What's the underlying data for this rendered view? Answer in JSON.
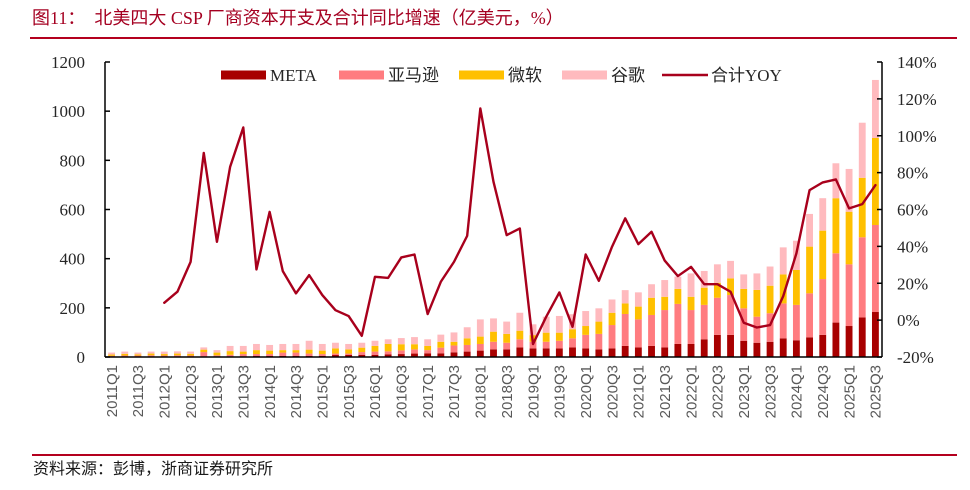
{
  "title": "图11：  北美四大 CSP 厂商资本开支及合计同比增速（亿美元，%）",
  "source": "资料来源：彭博，浙商证券研究所",
  "chart_data": {
    "type": "bar",
    "stacked": true,
    "title": "北美四大 CSP 厂商资本开支及合计同比增速（亿美元，%）",
    "xlabel": "",
    "ylabel": "亿美元",
    "ylabel_right": "%",
    "grid": false,
    "legend_position": "top-center",
    "x_label_interval": 2,
    "categories": [
      "2011Q1",
      "2011Q2",
      "2011Q3",
      "2011Q4",
      "2012Q1",
      "2012Q2",
      "2012Q3",
      "2012Q4",
      "2013Q1",
      "2013Q2",
      "2013Q3",
      "2013Q4",
      "2014Q1",
      "2014Q2",
      "2014Q3",
      "2014Q4",
      "2015Q1",
      "2015Q2",
      "2015Q3",
      "2015Q4",
      "2016Q1",
      "2016Q2",
      "2016Q3",
      "2016Q4",
      "2017Q1",
      "2017Q2",
      "2017Q3",
      "2017Q4",
      "2018Q1",
      "2018Q2",
      "2018Q3",
      "2018Q4",
      "2019Q1",
      "2019Q2",
      "2019Q3",
      "2019Q4",
      "2020Q1",
      "2020Q2",
      "2020Q3",
      "2020Q4",
      "2021Q1",
      "2021Q2",
      "2021Q3",
      "2021Q4",
      "2022Q1",
      "2022Q2",
      "2022Q3",
      "2022Q4",
      "2023Q1",
      "2023Q2",
      "2023Q3",
      "2023Q4",
      "2024Q1",
      "2024Q2",
      "2024Q3",
      "2024Q4",
      "2025Q1",
      "2025Q2",
      "2025Q3"
    ],
    "y_axis_left": {
      "min": 0,
      "max": 1200,
      "tick_values": [
        0,
        200,
        400,
        600,
        800,
        1000,
        1200
      ],
      "tick_labels": [
        "0",
        "200",
        "400",
        "600",
        "800",
        "1000",
        "1200"
      ]
    },
    "y_axis_right": {
      "min": -20,
      "max": 140,
      "tick_values": [
        -20,
        0,
        20,
        40,
        60,
        80,
        100,
        120,
        140
      ],
      "tick_labels": [
        "-20%",
        "0%",
        "20%",
        "40%",
        "60%",
        "80%",
        "100%",
        "120%",
        "140%"
      ]
    },
    "series": [
      {
        "name": "META",
        "type": "bar",
        "axis": "left",
        "color": "#A80000",
        "values": [
          2,
          2,
          2,
          2,
          2,
          2,
          2,
          2,
          3,
          3,
          3,
          4,
          4,
          4,
          4,
          4,
          5,
          8,
          9,
          9,
          9,
          11,
          12,
          14,
          15,
          15,
          19,
          22,
          26,
          31,
          31,
          39,
          35,
          35,
          35,
          39,
          35,
          31,
          35,
          45,
          39,
          45,
          39,
          53,
          53,
          72,
          90,
          90,
          66,
          58,
          62,
          76,
          68,
          80,
          90,
          140,
          126,
          161,
          183
        ]
      },
      {
        "name": "亚马逊",
        "type": "bar",
        "axis": "left",
        "color": "#FF7C80",
        "values": [
          3,
          4,
          4,
          5,
          4,
          5,
          4,
          18,
          4,
          6,
          9,
          8,
          8,
          14,
          14,
          10,
          7,
          6,
          5,
          11,
          13,
          12,
          15,
          17,
          13,
          23,
          28,
          27,
          27,
          31,
          27,
          33,
          27,
          27,
          31,
          37,
          55,
          63,
          95,
          130,
          114,
          126,
          152,
          163,
          138,
          140,
          151,
          162,
          132,
          106,
          116,
          142,
          144,
          179,
          227,
          282,
          251,
          326,
          354
        ]
      },
      {
        "name": "微软",
        "type": "bar",
        "axis": "left",
        "color": "#FFC000",
        "values": [
          5,
          7,
          5,
          7,
          6,
          7,
          7,
          10,
          11,
          15,
          10,
          16,
          14,
          10,
          10,
          16,
          14,
          21,
          17,
          18,
          23,
          30,
          25,
          21,
          17,
          24,
          15,
          27,
          30,
          41,
          36,
          35,
          27,
          37,
          33,
          37,
          36,
          50,
          50,
          43,
          52,
          70,
          54,
          61,
          54,
          70,
          61,
          68,
          79,
          109,
          112,
          118,
          142,
          190,
          197,
          224,
          214,
          242,
          354
        ]
      },
      {
        "name": "谷歌",
        "type": "bar",
        "axis": "left",
        "color": "#FFBABE",
        "values": [
          8,
          9,
          7,
          8,
          10,
          9,
          9,
          9,
          10,
          21,
          23,
          25,
          23,
          25,
          25,
          36,
          27,
          23,
          22,
          20,
          21,
          19,
          25,
          29,
          27,
          29,
          38,
          45,
          70,
          54,
          50,
          73,
          44,
          65,
          68,
          61,
          61,
          54,
          54,
          54,
          58,
          55,
          68,
          50,
          95,
          68,
          75,
          71,
          59,
          67,
          78,
          110,
          119,
          133,
          132,
          142,
          174,
          224,
          236
        ]
      },
      {
        "name": "合计YOY",
        "type": "line",
        "axis": "right",
        "unit": "%",
        "color": "#A8001C",
        "values": [
          null,
          null,
          null,
          null,
          9.4,
          15.4,
          31.6,
          90.7,
          42.5,
          83.1,
          104.5,
          27.5,
          58.7,
          26.6,
          14.5,
          24.4,
          13.6,
          5.4,
          2.2,
          -8.5,
          23.5,
          22.9,
          34.0,
          35.6,
          3.3,
          20.8,
          31.6,
          45.7,
          114.8,
          75.0,
          46.1,
          49.7,
          -13.0,
          1.8,
          15.0,
          -3.6,
          35.6,
          21.3,
          39.8,
          55.2,
          41.2,
          47.9,
          32.3,
          23.9,
          28.9,
          19.5,
          19.5,
          15.4,
          -1.4,
          -4.0,
          -2.7,
          13.0,
          36.2,
          70.5,
          74.7,
          76.3,
          60.6,
          62.9,
          73.2
        ]
      }
    ]
  }
}
